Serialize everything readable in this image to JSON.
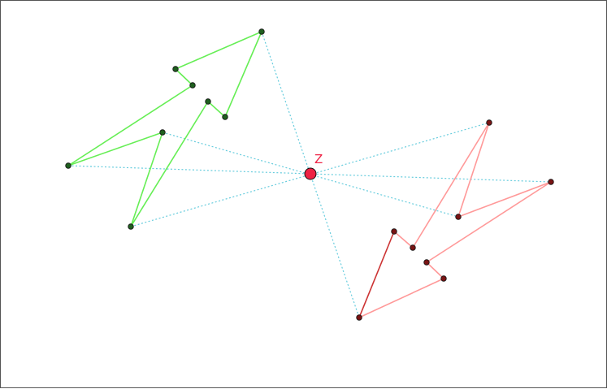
{
  "diagram": {
    "description_free": true,
    "center_label": "Z",
    "colors": {
      "green_polygon": "#66ee55",
      "green_vertex": "#1f5f1f",
      "red_polygon": "#ff9999",
      "red_edge_dark": "#cc3333",
      "red_vertex": "#7a1414",
      "dotted_lines": "#66ccdd",
      "center_fill": "#ee2244",
      "center_label": "#ee2244",
      "vertex_outline": "#111111"
    }
  }
}
